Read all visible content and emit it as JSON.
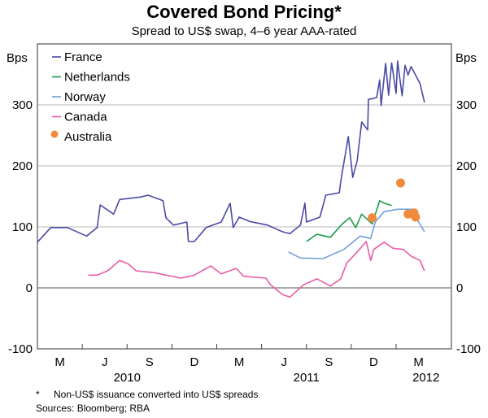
{
  "chart_data": {
    "type": "line",
    "title": "Covered Bond Pricing*",
    "subtitle": "Spread to US$ swap, 4–6 year AAA-rated",
    "ylabel_left": "Bps",
    "ylabel_right": "Bps",
    "ylim": [
      -100,
      400
    ],
    "yticks": [
      -100,
      0,
      100,
      200,
      300
    ],
    "x_unit": "months since Mar 2010",
    "xlim": [
      0,
      27.7
    ],
    "month_labels": [
      {
        "label": "M",
        "x": 1.5
      },
      {
        "label": "J",
        "x": 4.5
      },
      {
        "label": "S",
        "x": 7.5
      },
      {
        "label": "D",
        "x": 10.5
      },
      {
        "label": "M",
        "x": 13.5
      },
      {
        "label": "J",
        "x": 16.5
      },
      {
        "label": "S",
        "x": 19.5
      },
      {
        "label": "D",
        "x": 22.5
      },
      {
        "label": "M",
        "x": 25.5
      }
    ],
    "quarter_ticks": [
      3,
      6,
      9,
      12,
      15,
      18,
      21,
      24
    ],
    "year_labels": [
      {
        "label": "2010",
        "x": 6
      },
      {
        "label": "2011",
        "x": 18
      },
      {
        "label": "2012",
        "x": 26
      }
    ],
    "grid": true,
    "legend_placement": "top-left",
    "series": [
      {
        "name": "France",
        "color": "#4a4aa6",
        "type": "line",
        "points": [
          [
            0,
            75
          ],
          [
            0.9,
            99
          ],
          [
            2,
            99
          ],
          [
            3.3,
            85
          ],
          [
            4,
            99
          ],
          [
            4.2,
            136
          ],
          [
            5.1,
            121
          ],
          [
            5.5,
            145
          ],
          [
            6.9,
            149
          ],
          [
            7.4,
            152
          ],
          [
            8.4,
            143
          ],
          [
            8.6,
            115
          ],
          [
            9.1,
            103
          ],
          [
            10,
            108
          ],
          [
            10.1,
            76
          ],
          [
            10.5,
            76
          ],
          [
            11.3,
            99
          ],
          [
            12.3,
            108
          ],
          [
            12.9,
            139
          ],
          [
            13.1,
            99
          ],
          [
            13.5,
            116
          ],
          [
            14.2,
            109
          ],
          [
            15.4,
            103
          ],
          [
            16.4,
            92
          ],
          [
            16.9,
            89
          ],
          [
            17.6,
            103
          ],
          [
            17.9,
            139
          ],
          [
            18,
            108
          ],
          [
            18.9,
            116
          ],
          [
            19.3,
            152
          ],
          [
            20.2,
            156
          ],
          [
            20.3,
            175
          ],
          [
            20.8,
            248
          ],
          [
            21.1,
            181
          ],
          [
            21.4,
            209
          ],
          [
            21.7,
            272
          ],
          [
            22.1,
            259
          ],
          [
            22.15,
            309
          ],
          [
            22.7,
            312
          ],
          [
            22.9,
            341
          ],
          [
            23,
            299
          ],
          [
            23.3,
            368
          ],
          [
            23.5,
            316
          ],
          [
            23.7,
            369
          ],
          [
            24,
            319
          ],
          [
            24.1,
            372
          ],
          [
            24.4,
            315
          ],
          [
            24.6,
            365
          ],
          [
            24.8,
            349
          ],
          [
            25,
            363
          ],
          [
            25.6,
            335
          ],
          [
            25.9,
            304
          ]
        ]
      },
      {
        "name": "Netherlands",
        "color": "#1b9a4b",
        "type": "line",
        "points": [
          [
            18,
            76
          ],
          [
            18.7,
            88
          ],
          [
            19.6,
            83
          ],
          [
            20.4,
            105
          ],
          [
            20.9,
            115
          ],
          [
            21.3,
            99
          ],
          [
            21.7,
            121
          ],
          [
            22.4,
            105
          ],
          [
            22.9,
            143
          ],
          [
            23.2,
            139
          ],
          [
            23.7,
            135
          ]
        ]
      },
      {
        "name": "Norway",
        "color": "#6fa0dc",
        "type": "line",
        "points": [
          [
            16.8,
            59
          ],
          [
            17.6,
            49
          ],
          [
            19.1,
            48
          ],
          [
            20.5,
            63
          ],
          [
            21.6,
            85
          ],
          [
            22.3,
            81
          ],
          [
            22.6,
            108
          ],
          [
            23.2,
            125
          ],
          [
            24.1,
            129
          ],
          [
            25,
            129
          ],
          [
            25.9,
            92
          ]
        ]
      },
      {
        "name": "Canada",
        "color": "#e95ba7",
        "type": "line",
        "points": [
          [
            3.4,
            21
          ],
          [
            4,
            21
          ],
          [
            4.7,
            28
          ],
          [
            5.5,
            45
          ],
          [
            6.1,
            39
          ],
          [
            6.6,
            28
          ],
          [
            7.8,
            25
          ],
          [
            9.6,
            16
          ],
          [
            10.5,
            21
          ],
          [
            11.6,
            36
          ],
          [
            12.3,
            23
          ],
          [
            13.3,
            32
          ],
          [
            13.8,
            19
          ],
          [
            15.3,
            16
          ],
          [
            15.6,
            5
          ],
          [
            16.4,
            -11
          ],
          [
            16.9,
            -15
          ],
          [
            17.8,
            5
          ],
          [
            18.7,
            15
          ],
          [
            19.6,
            3
          ],
          [
            20.3,
            15
          ],
          [
            20.7,
            41
          ],
          [
            21.4,
            59
          ],
          [
            22,
            76
          ],
          [
            22.3,
            45
          ],
          [
            22.5,
            63
          ],
          [
            23.2,
            75
          ],
          [
            23.8,
            65
          ],
          [
            24.5,
            63
          ],
          [
            25,
            52
          ],
          [
            25.6,
            45
          ],
          [
            25.9,
            28
          ]
        ]
      },
      {
        "name": "Australia",
        "color": "#f08a3c",
        "type": "scatter",
        "points": [
          [
            22.4,
            115
          ],
          [
            24.3,
            172
          ],
          [
            24.8,
            121
          ],
          [
            25.2,
            123
          ],
          [
            25.3,
            116
          ]
        ]
      }
    ]
  },
  "notes": {
    "footnote_marker": "*",
    "footnote": "Non-US$ issuance converted into US$ spreads",
    "sources": "Sources: Bloomberg; RBA"
  }
}
